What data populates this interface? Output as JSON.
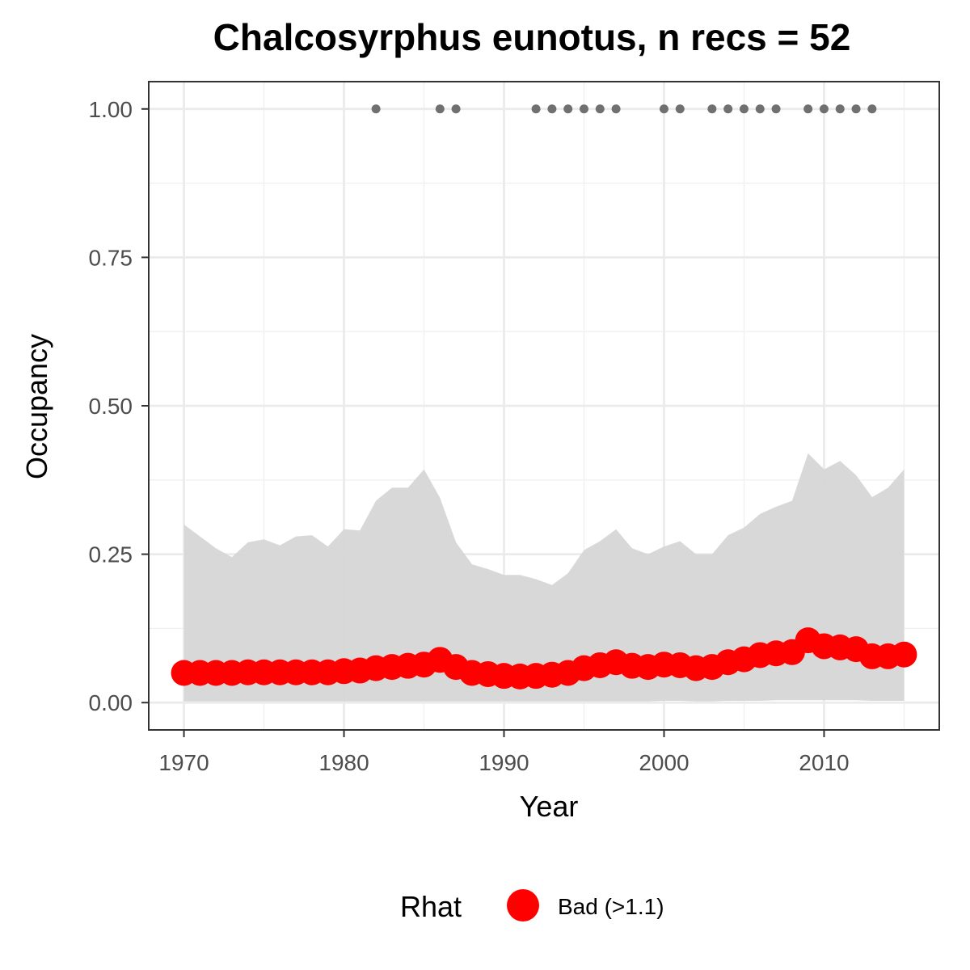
{
  "chart_data": {
    "type": "line",
    "title": "Chalcosyrphus eunotus, n recs = 52",
    "xlabel": "Year",
    "ylabel": "Occupancy",
    "xlim": [
      1967.8,
      2017.2
    ],
    "ylim": [
      -0.046,
      1.046
    ],
    "x_ticks": [
      1970,
      1980,
      1990,
      2000,
      2010
    ],
    "x_tick_labels": [
      "1970",
      "1980",
      "1990",
      "2000",
      "2010"
    ],
    "y_ticks": [
      0,
      0.25,
      0.5,
      0.75,
      1.0
    ],
    "y_tick_labels": [
      "0.00",
      "0.25",
      "0.50",
      "0.75",
      "1.00"
    ],
    "grid": true,
    "legend": {
      "title": "Rhat",
      "position": "bottom",
      "entries": [
        {
          "label": "Bad (>1.1)",
          "color": "#ff0000"
        }
      ]
    },
    "series": [
      {
        "name": "Bad (>1.1)",
        "kind": "points",
        "color": "#ff0000",
        "x": [
          1970,
          1971,
          1972,
          1973,
          1974,
          1975,
          1976,
          1977,
          1978,
          1979,
          1980,
          1981,
          1982,
          1983,
          1984,
          1985,
          1986,
          1987,
          1988,
          1989,
          1990,
          1991,
          1992,
          1993,
          1994,
          1995,
          1996,
          1997,
          1998,
          1999,
          2000,
          2001,
          2002,
          2003,
          2004,
          2005,
          2006,
          2007,
          2008,
          2009,
          2010,
          2011,
          2012,
          2013,
          2014,
          2015
        ],
        "y": [
          0.05,
          0.05,
          0.05,
          0.05,
          0.051,
          0.051,
          0.051,
          0.051,
          0.051,
          0.051,
          0.053,
          0.054,
          0.058,
          0.06,
          0.062,
          0.064,
          0.072,
          0.06,
          0.05,
          0.048,
          0.045,
          0.044,
          0.045,
          0.047,
          0.05,
          0.058,
          0.063,
          0.068,
          0.062,
          0.06,
          0.064,
          0.063,
          0.058,
          0.06,
          0.068,
          0.073,
          0.08,
          0.083,
          0.085,
          0.105,
          0.095,
          0.093,
          0.09,
          0.078,
          0.078,
          0.081
        ]
      }
    ],
    "ribbon": {
      "color": "#d6d6d6",
      "x": [
        1970,
        1971,
        1972,
        1973,
        1974,
        1975,
        1976,
        1977,
        1978,
        1979,
        1980,
        1981,
        1982,
        1983,
        1984,
        1985,
        1986,
        1987,
        1988,
        1989,
        1990,
        1991,
        1992,
        1993,
        1994,
        1995,
        1996,
        1997,
        1998,
        1999,
        2000,
        2001,
        2002,
        2003,
        2004,
        2005,
        2006,
        2007,
        2008,
        2009,
        2010,
        2011,
        2012,
        2013,
        2014,
        2015
      ],
      "lower": [
        0.002,
        0.002,
        0.002,
        0.002,
        0.002,
        0.002,
        0.002,
        0.002,
        0.002,
        0.002,
        0.002,
        0.002,
        0.002,
        0.002,
        0.002,
        0.002,
        0.002,
        0.002,
        0.002,
        0.002,
        0.002,
        0.002,
        0.002,
        0.002,
        0.002,
        0.002,
        0.002,
        0.002,
        0.002,
        0.002,
        0.003,
        0.003,
        0.002,
        0.002,
        0.003,
        0.003,
        0.003,
        0.004,
        0.004,
        0.004,
        0.004,
        0.004,
        0.004,
        0.003,
        0.003,
        0.003
      ],
      "upper": [
        0.3,
        0.28,
        0.26,
        0.245,
        0.27,
        0.275,
        0.265,
        0.28,
        0.282,
        0.263,
        0.292,
        0.29,
        0.34,
        0.362,
        0.362,
        0.393,
        0.345,
        0.27,
        0.233,
        0.225,
        0.215,
        0.215,
        0.208,
        0.198,
        0.218,
        0.257,
        0.272,
        0.292,
        0.26,
        0.25,
        0.263,
        0.272,
        0.25,
        0.25,
        0.282,
        0.295,
        0.318,
        0.33,
        0.34,
        0.42,
        0.393,
        0.407,
        0.383,
        0.346,
        0.362,
        0.393
      ]
    },
    "records": {
      "color": "#707070",
      "x": [
        1982,
        1986,
        1987,
        1992,
        1993,
        1994,
        1995,
        1996,
        1997,
        2000,
        2001,
        2003,
        2004,
        2005,
        2006,
        2007,
        2009,
        2010,
        2011,
        2012,
        2013
      ],
      "y": [
        1,
        1,
        1,
        1,
        1,
        1,
        1,
        1,
        1,
        1,
        1,
        1,
        1,
        1,
        1,
        1,
        1,
        1,
        1,
        1,
        1
      ]
    }
  }
}
